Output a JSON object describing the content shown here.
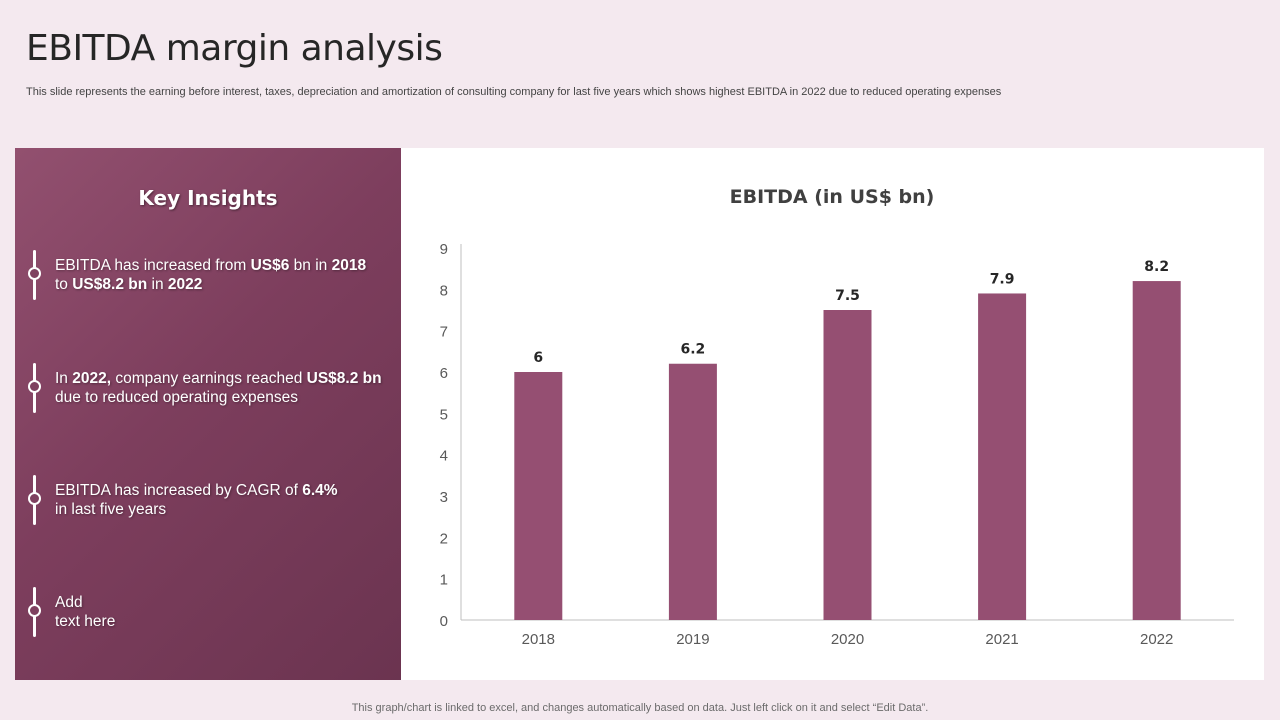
{
  "slide": {
    "title": "EBITDA margin analysis",
    "subtitle": "This slide represents the earning before interest, taxes, depreciation and amortization of consulting company for last five years which shows highest EBITDA in 2022 due to reduced operating expenses",
    "footer": "This graph/chart is linked to excel,  and changes automatically based on data. Just left click on it and select “Edit Data”."
  },
  "insights": {
    "title": "Key Insights",
    "items": [
      {
        "p1": "EBITDA has increased from ",
        "b1": "US$6",
        "p2": " bn in ",
        "b2": "2018",
        "p3": " to ",
        "b3": "US$8.2 bn",
        "p4": " in ",
        "b4": "2022"
      },
      {
        "p1": "In ",
        "b1": "2022,",
        "p2": " company earnings reached ",
        "b2": "US$8.2 bn",
        "p3": " due to reduced operating expenses"
      },
      {
        "p1": "EBITDA has increased by CAGR of ",
        "b1": "6.4%",
        "p2": " in last five years"
      },
      {
        "p1": "Add",
        "p2": "text here"
      }
    ]
  },
  "colors": {
    "bar": "#954f72",
    "axis": "#bfbfbf",
    "tick_text": "#595959",
    "label_text": "#262626"
  },
  "chart_data": {
    "type": "bar",
    "title": "EBITDA (in US$ bn)",
    "categories": [
      "2018",
      "2019",
      "2020",
      "2021",
      "2022"
    ],
    "values": [
      6,
      6.2,
      7.5,
      7.9,
      8.2
    ],
    "data_labels": [
      "6",
      "6.2",
      "7.5",
      "7.9",
      "8.2"
    ],
    "y_ticks": [
      "0",
      "1",
      "2",
      "3",
      "4",
      "5",
      "6",
      "7",
      "8",
      "9"
    ],
    "ylim": [
      0,
      9
    ],
    "xlabel": "",
    "ylabel": "",
    "grid": false,
    "legend": "none"
  }
}
